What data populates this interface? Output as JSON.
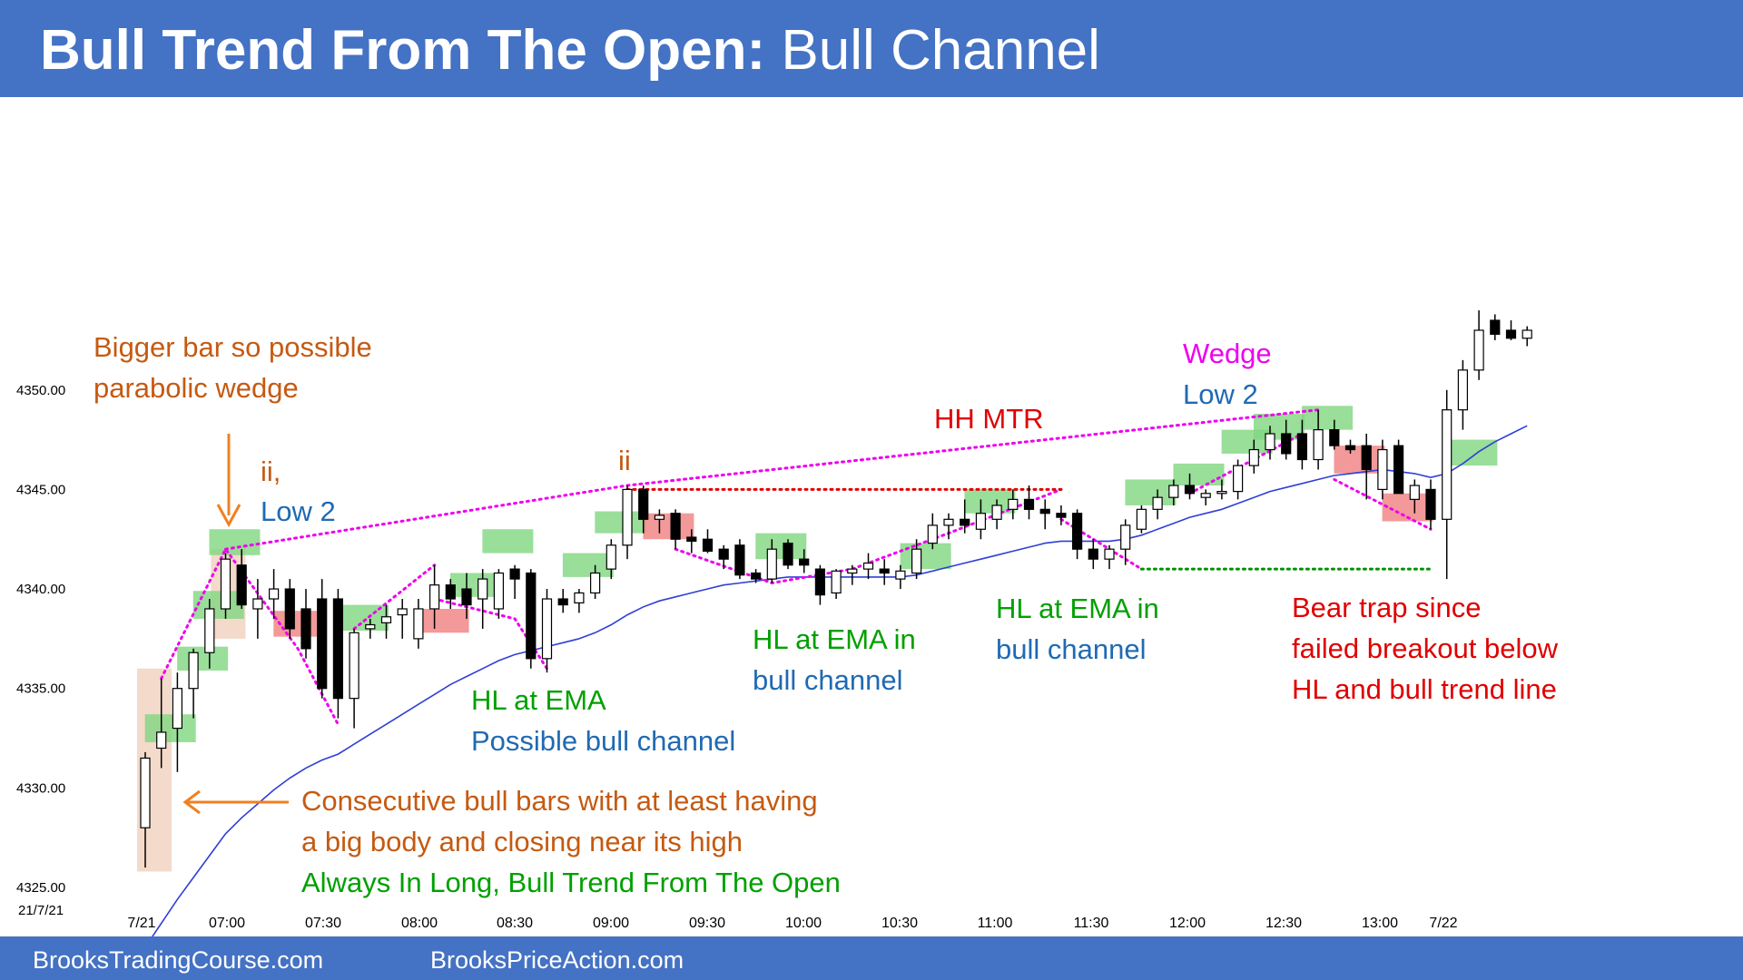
{
  "header": {
    "title_bold": "Bull Trend From The Open:",
    "title_rest": " Bull Channel"
  },
  "footer": {
    "left": "BrooksTradingCourse.com",
    "right": "BrooksPriceAction.com"
  },
  "colors": {
    "band": "#4472c4",
    "ema": "#2f3fd6",
    "bull_bar_fill": "#ffffff",
    "bear_bar_fill": "#000000",
    "green_highlight": "#7fd67f",
    "red_highlight": "#f08080",
    "tan_highlight": "#f2d6c4",
    "magenta": "#ee00ee",
    "orange": "#c55a11",
    "green_text": "#00a000",
    "blue_text": "#1f6ab3",
    "red_text": "#e00000"
  },
  "chart_data": {
    "type": "candlestick",
    "instrument_date": "21/7/21",
    "ylim": [
      4325,
      4355
    ],
    "yticks": [
      "4325.00",
      "4330.00",
      "4335.00",
      "4340.00",
      "4345.00",
      "4350.00"
    ],
    "xtick_labels": [
      "7/21",
      "07:00",
      "07:30",
      "08:00",
      "08:30",
      "09:00",
      "09:30",
      "10:00",
      "10:30",
      "11:00",
      "11:30",
      "12:00",
      "12:30",
      "13:00",
      "7/22"
    ],
    "bar_interval": "5 min",
    "first_bar_time": "06:35",
    "bars": [
      {
        "o": 4328.0,
        "h": 4331.8,
        "l": 4326.0,
        "c": 4331.5
      },
      {
        "o": 4332.0,
        "h": 4335.5,
        "l": 4331.0,
        "c": 4332.8
      },
      {
        "o": 4333.0,
        "h": 4335.8,
        "l": 4330.8,
        "c": 4335.0
      },
      {
        "o": 4335.0,
        "h": 4337.0,
        "l": 4333.5,
        "c": 4336.8
      },
      {
        "o": 4336.8,
        "h": 4339.5,
        "l": 4336.0,
        "c": 4339.0
      },
      {
        "o": 4339.0,
        "h": 4341.8,
        "l": 4338.5,
        "c": 4341.5
      },
      {
        "o": 4341.2,
        "h": 4342.0,
        "l": 4339.0,
        "c": 4339.2
      },
      {
        "o": 4339.0,
        "h": 4340.5,
        "l": 4337.5,
        "c": 4339.5
      },
      {
        "o": 4339.5,
        "h": 4341.0,
        "l": 4338.5,
        "c": 4340.0
      },
      {
        "o": 4340.0,
        "h": 4340.5,
        "l": 4337.5,
        "c": 4338.0
      },
      {
        "o": 4339.0,
        "h": 4340.0,
        "l": 4336.5,
        "c": 4337.0
      },
      {
        "o": 4339.5,
        "h": 4340.5,
        "l": 4334.5,
        "c": 4335.0
      },
      {
        "o": 4339.5,
        "h": 4340.0,
        "l": 4333.5,
        "c": 4334.5
      },
      {
        "o": 4334.5,
        "h": 4338.0,
        "l": 4333.0,
        "c": 4337.8
      },
      {
        "o": 4338.0,
        "h": 4338.5,
        "l": 4337.5,
        "c": 4338.2
      },
      {
        "o": 4338.3,
        "h": 4339.2,
        "l": 4337.5,
        "c": 4338.6
      },
      {
        "o": 4338.7,
        "h": 4339.5,
        "l": 4337.5,
        "c": 4339.0
      },
      {
        "o": 4337.5,
        "h": 4339.5,
        "l": 4337.0,
        "c": 4339.0
      },
      {
        "o": 4339.0,
        "h": 4341.2,
        "l": 4338.0,
        "c": 4340.2
      },
      {
        "o": 4340.2,
        "h": 4340.5,
        "l": 4339.0,
        "c": 4339.5
      },
      {
        "o": 4340.0,
        "h": 4340.8,
        "l": 4338.5,
        "c": 4339.2
      },
      {
        "o": 4339.5,
        "h": 4341.0,
        "l": 4338.0,
        "c": 4340.5
      },
      {
        "o": 4339.0,
        "h": 4341.0,
        "l": 4338.5,
        "c": 4340.8
      },
      {
        "o": 4341.0,
        "h": 4341.2,
        "l": 4339.5,
        "c": 4340.5
      },
      {
        "o": 4340.8,
        "h": 4341.0,
        "l": 4336.0,
        "c": 4336.5
      },
      {
        "o": 4336.5,
        "h": 4340.0,
        "l": 4335.8,
        "c": 4339.5
      },
      {
        "o": 4339.5,
        "h": 4340.0,
        "l": 4338.8,
        "c": 4339.2
      },
      {
        "o": 4339.3,
        "h": 4340.0,
        "l": 4338.8,
        "c": 4339.8
      },
      {
        "o": 4339.8,
        "h": 4341.2,
        "l": 4339.5,
        "c": 4340.8
      },
      {
        "o": 4341.0,
        "h": 4342.5,
        "l": 4340.5,
        "c": 4342.2
      },
      {
        "o": 4342.2,
        "h": 4345.2,
        "l": 4341.5,
        "c": 4345.0
      },
      {
        "o": 4345.0,
        "h": 4345.2,
        "l": 4342.8,
        "c": 4343.5
      },
      {
        "o": 4343.5,
        "h": 4344.0,
        "l": 4342.8,
        "c": 4343.7
      },
      {
        "o": 4343.8,
        "h": 4344.0,
        "l": 4342.0,
        "c": 4342.5
      },
      {
        "o": 4342.6,
        "h": 4343.0,
        "l": 4341.8,
        "c": 4342.4
      },
      {
        "o": 4342.5,
        "h": 4343.0,
        "l": 4341.8,
        "c": 4341.9
      },
      {
        "o": 4342.0,
        "h": 4342.2,
        "l": 4341.0,
        "c": 4341.5
      },
      {
        "o": 4342.2,
        "h": 4342.5,
        "l": 4340.5,
        "c": 4340.7
      },
      {
        "o": 4340.8,
        "h": 4341.0,
        "l": 4340.3,
        "c": 4340.5
      },
      {
        "o": 4340.5,
        "h": 4342.5,
        "l": 4340.3,
        "c": 4342.0
      },
      {
        "o": 4342.3,
        "h": 4342.5,
        "l": 4341.0,
        "c": 4341.2
      },
      {
        "o": 4341.5,
        "h": 4342.0,
        "l": 4340.8,
        "c": 4341.2
      },
      {
        "o": 4341.0,
        "h": 4341.2,
        "l": 4339.2,
        "c": 4339.7
      },
      {
        "o": 4339.8,
        "h": 4341.0,
        "l": 4339.5,
        "c": 4340.9
      },
      {
        "o": 4340.8,
        "h": 4341.2,
        "l": 4340.2,
        "c": 4341.0
      },
      {
        "o": 4341.0,
        "h": 4341.8,
        "l": 4340.5,
        "c": 4341.3
      },
      {
        "o": 4341.0,
        "h": 4341.5,
        "l": 4340.2,
        "c": 4340.8
      },
      {
        "o": 4340.5,
        "h": 4341.2,
        "l": 4340.0,
        "c": 4340.9
      },
      {
        "o": 4340.8,
        "h": 4342.5,
        "l": 4340.5,
        "c": 4342.0
      },
      {
        "o": 4342.3,
        "h": 4343.8,
        "l": 4342.0,
        "c": 4343.2
      },
      {
        "o": 4343.2,
        "h": 4343.8,
        "l": 4342.5,
        "c": 4343.5
      },
      {
        "o": 4343.5,
        "h": 4344.5,
        "l": 4342.8,
        "c": 4343.2
      },
      {
        "o": 4343.0,
        "h": 4344.5,
        "l": 4342.5,
        "c": 4343.8
      },
      {
        "o": 4343.5,
        "h": 4344.5,
        "l": 4343.0,
        "c": 4344.2
      },
      {
        "o": 4344.0,
        "h": 4345.0,
        "l": 4343.5,
        "c": 4344.5
      },
      {
        "o": 4344.5,
        "h": 4345.2,
        "l": 4343.5,
        "c": 4344.0
      },
      {
        "o": 4344.0,
        "h": 4344.5,
        "l": 4343.0,
        "c": 4343.8
      },
      {
        "o": 4343.8,
        "h": 4344.2,
        "l": 4343.2,
        "c": 4343.6
      },
      {
        "o": 4343.8,
        "h": 4344.0,
        "l": 4341.5,
        "c": 4342.0
      },
      {
        "o": 4342.0,
        "h": 4342.5,
        "l": 4341.0,
        "c": 4341.5
      },
      {
        "o": 4341.5,
        "h": 4342.2,
        "l": 4341.0,
        "c": 4342.0
      },
      {
        "o": 4342.0,
        "h": 4343.5,
        "l": 4341.2,
        "c": 4343.2
      },
      {
        "o": 4343.0,
        "h": 4344.2,
        "l": 4342.8,
        "c": 4344.0
      },
      {
        "o": 4344.0,
        "h": 4345.0,
        "l": 4343.5,
        "c": 4344.6
      },
      {
        "o": 4344.6,
        "h": 4345.5,
        "l": 4344.2,
        "c": 4345.2
      },
      {
        "o": 4345.2,
        "h": 4345.8,
        "l": 4344.5,
        "c": 4344.8
      },
      {
        "o": 4344.6,
        "h": 4345.0,
        "l": 4344.2,
        "c": 4344.8
      },
      {
        "o": 4344.8,
        "h": 4345.5,
        "l": 4344.5,
        "c": 4344.9
      },
      {
        "o": 4344.9,
        "h": 4346.5,
        "l": 4344.5,
        "c": 4346.2
      },
      {
        "o": 4346.2,
        "h": 4347.5,
        "l": 4345.8,
        "c": 4347.0
      },
      {
        "o": 4347.0,
        "h": 4348.2,
        "l": 4346.5,
        "c": 4347.8
      },
      {
        "o": 4347.8,
        "h": 4348.5,
        "l": 4346.5,
        "c": 4346.8
      },
      {
        "o": 4347.8,
        "h": 4348.5,
        "l": 4346.0,
        "c": 4346.5
      },
      {
        "o": 4346.5,
        "h": 4349.0,
        "l": 4346.0,
        "c": 4348.0
      },
      {
        "o": 4348.0,
        "h": 4348.5,
        "l": 4347.0,
        "c": 4347.2
      },
      {
        "o": 4347.2,
        "h": 4347.5,
        "l": 4346.8,
        "c": 4347.0
      },
      {
        "o": 4347.2,
        "h": 4347.8,
        "l": 4344.5,
        "c": 4346.0
      },
      {
        "o": 4345.0,
        "h": 4347.5,
        "l": 4344.5,
        "c": 4347.0
      },
      {
        "o": 4347.2,
        "h": 4347.5,
        "l": 4344.8,
        "c": 4344.8
      },
      {
        "o": 4344.5,
        "h": 4345.5,
        "l": 4343.8,
        "c": 4345.2
      },
      {
        "o": 4345.0,
        "h": 4345.5,
        "l": 4343.0,
        "c": 4343.5
      },
      {
        "o": 4343.5,
        "h": 4350.0,
        "l": 4340.5,
        "c": 4349.0
      },
      {
        "o": 4349.0,
        "h": 4351.5,
        "l": 4348.0,
        "c": 4351.0
      },
      {
        "o": 4351.0,
        "h": 4354.0,
        "l": 4350.5,
        "c": 4353.0
      },
      {
        "o": 4353.5,
        "h": 4353.8,
        "l": 4352.5,
        "c": 4352.8
      },
      {
        "o": 4353.0,
        "h": 4353.5,
        "l": 4352.5,
        "c": 4352.6
      },
      {
        "o": 4352.6,
        "h": 4353.2,
        "l": 4352.2,
        "c": 4353.0
      }
    ],
    "ema_series": [
      4322.0,
      4323.2,
      4324.4,
      4325.5,
      4326.6,
      4327.7,
      4328.5,
      4329.2,
      4329.9,
      4330.5,
      4331.0,
      4331.4,
      4331.7,
      4332.2,
      4332.7,
      4333.2,
      4333.7,
      4334.2,
      4334.7,
      4335.2,
      4335.6,
      4336.0,
      4336.4,
      4336.7,
      4336.9,
      4337.1,
      4337.3,
      4337.5,
      4337.8,
      4338.2,
      4338.7,
      4339.1,
      4339.4,
      4339.6,
      4339.8,
      4340.0,
      4340.2,
      4340.3,
      4340.4,
      4340.5,
      4340.6,
      4340.6,
      4340.6,
      4340.6,
      4340.6,
      4340.6,
      4340.6,
      4340.6,
      4340.7,
      4340.9,
      4341.1,
      4341.3,
      4341.5,
      4341.7,
      4341.9,
      4342.1,
      4342.3,
      4342.4,
      4342.4,
      4342.4,
      4342.4,
      4342.5,
      4342.7,
      4343.0,
      4343.3,
      4343.6,
      4343.8,
      4344.0,
      4344.3,
      4344.6,
      4344.9,
      4345.1,
      4345.3,
      4345.5,
      4345.7,
      4345.8,
      4345.9,
      4346.0,
      4345.9,
      4345.8,
      4345.6,
      4345.8,
      4346.3,
      4346.9,
      4347.4,
      4347.8,
      4348.2
    ]
  },
  "annotations": {
    "bigger_bar_1": "Bigger bar so possible",
    "bigger_bar_2": "parabolic wedge",
    "ii_low2_1": "ii,",
    "ii_low2_2": "Low 2",
    "ii_2": "ii",
    "hh_mtr": "HH MTR",
    "wedge": "Wedge",
    "low2_b": "Low 2",
    "hl_ema_1": "HL at EMA",
    "hl_ema_2": "Possible bull channel",
    "hl_ema_bc_1": "HL at EMA in",
    "hl_ema_bc_2": "bull channel",
    "hl_ema_bc2_1": "HL at EMA in",
    "hl_ema_bc2_2": "bull channel",
    "bear_trap_1": "Bear trap since",
    "bear_trap_2": "failed breakout below",
    "bear_trap_3": "HL and bull trend line",
    "consec_1": "Consecutive bull bars with at least having",
    "consec_2": "a big body and closing near its high",
    "consec_3": "Always In Long, Bull Trend From The Open"
  }
}
